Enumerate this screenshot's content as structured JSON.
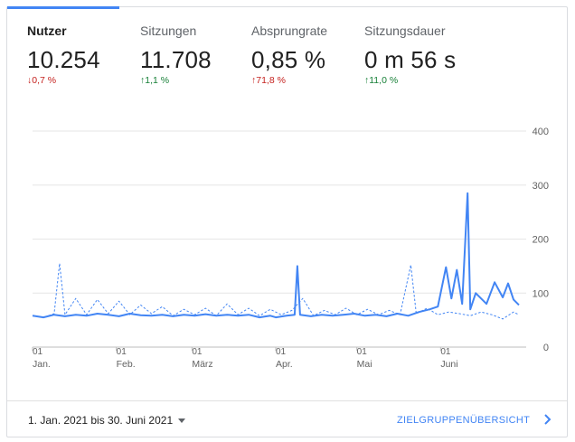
{
  "metrics": [
    {
      "label": "Nutzer",
      "value": "10.254",
      "change": "0,7 %",
      "direction": "down",
      "active": true
    },
    {
      "label": "Sitzungen",
      "value": "11.708",
      "change": "1,1 %",
      "direction": "up",
      "active": false
    },
    {
      "label": "Absprungrate",
      "value": "0,85 %",
      "change": "71,8 %",
      "direction": "up-bad",
      "active": false
    },
    {
      "label": "Sitzungsdauer",
      "value": "0 m 56 s",
      "change": "11,0 %",
      "direction": "up",
      "active": false
    }
  ],
  "footer": {
    "date_range": "1. Jan. 2021 bis 30. Juni 2021",
    "overview_link": "ZIELGRUPPENÜBERSICHT"
  },
  "colors": {
    "accent": "#4285f4",
    "negative": "#c5221f",
    "positive": "#188038"
  },
  "icons": {
    "dropdown": "caret-down-icon",
    "link": "chevron-right-icon"
  },
  "chart_data": {
    "type": "line",
    "x_range": [
      "2021-01-01",
      "2021-06-30"
    ],
    "x_tick_labels": [
      {
        "day": "01",
        "month": "Jan.",
        "date": "2021-01-01"
      },
      {
        "day": "01",
        "month": "Feb.",
        "date": "2021-02-01"
      },
      {
        "day": "01",
        "month": "März",
        "date": "2021-03-01"
      },
      {
        "day": "01",
        "month": "Apr.",
        "date": "2021-04-01"
      },
      {
        "day": "01",
        "month": "Mai",
        "date": "2021-05-01"
      },
      {
        "day": "01",
        "month": "Juni",
        "date": "2021-06-01"
      }
    ],
    "y_ticks": [
      0,
      100,
      200,
      300,
      400
    ],
    "ylim": [
      0,
      400
    ],
    "grid": true,
    "series": [
      {
        "style": "solid",
        "color": "#4285f4",
        "points": [
          [
            "2021-01-01",
            58
          ],
          [
            "2021-01-05",
            55
          ],
          [
            "2021-01-09",
            60
          ],
          [
            "2021-01-13",
            57
          ],
          [
            "2021-01-17",
            60
          ],
          [
            "2021-01-21",
            58
          ],
          [
            "2021-01-25",
            62
          ],
          [
            "2021-01-29",
            60
          ],
          [
            "2021-02-02",
            57
          ],
          [
            "2021-02-06",
            62
          ],
          [
            "2021-02-10",
            59
          ],
          [
            "2021-02-14",
            58
          ],
          [
            "2021-02-18",
            60
          ],
          [
            "2021-02-22",
            57
          ],
          [
            "2021-02-26",
            60
          ],
          [
            "2021-03-02",
            58
          ],
          [
            "2021-03-06",
            61
          ],
          [
            "2021-03-10",
            58
          ],
          [
            "2021-03-14",
            60
          ],
          [
            "2021-03-18",
            58
          ],
          [
            "2021-03-22",
            60
          ],
          [
            "2021-03-26",
            55
          ],
          [
            "2021-03-30",
            58
          ],
          [
            "2021-04-01",
            55
          ],
          [
            "2021-04-05",
            58
          ],
          [
            "2021-04-08",
            60
          ],
          [
            "2021-04-09",
            150
          ],
          [
            "2021-04-10",
            60
          ],
          [
            "2021-04-14",
            57
          ],
          [
            "2021-04-18",
            60
          ],
          [
            "2021-04-22",
            58
          ],
          [
            "2021-04-26",
            60
          ],
          [
            "2021-04-30",
            62
          ],
          [
            "2021-05-04",
            58
          ],
          [
            "2021-05-08",
            60
          ],
          [
            "2021-05-12",
            57
          ],
          [
            "2021-05-16",
            62
          ],
          [
            "2021-05-20",
            58
          ],
          [
            "2021-05-24",
            65
          ],
          [
            "2021-05-28",
            70
          ],
          [
            "2021-05-31",
            75
          ],
          [
            "2021-06-03",
            148
          ],
          [
            "2021-06-05",
            90
          ],
          [
            "2021-06-07",
            143
          ],
          [
            "2021-06-09",
            80
          ],
          [
            "2021-06-11",
            285
          ],
          [
            "2021-06-12",
            70
          ],
          [
            "2021-06-14",
            100
          ],
          [
            "2021-06-18",
            80
          ],
          [
            "2021-06-21",
            120
          ],
          [
            "2021-06-24",
            92
          ],
          [
            "2021-06-26",
            118
          ],
          [
            "2021-06-28",
            88
          ],
          [
            "2021-06-30",
            78
          ]
        ]
      },
      {
        "style": "dashed",
        "color": "#4285f4",
        "points": [
          [
            "2021-01-01",
            58
          ],
          [
            "2021-01-05",
            55
          ],
          [
            "2021-01-09",
            62
          ],
          [
            "2021-01-11",
            155
          ],
          [
            "2021-01-13",
            60
          ],
          [
            "2021-01-17",
            90
          ],
          [
            "2021-01-21",
            60
          ],
          [
            "2021-01-25",
            88
          ],
          [
            "2021-01-29",
            62
          ],
          [
            "2021-02-02",
            85
          ],
          [
            "2021-02-06",
            60
          ],
          [
            "2021-02-10",
            78
          ],
          [
            "2021-02-14",
            62
          ],
          [
            "2021-02-18",
            75
          ],
          [
            "2021-02-22",
            58
          ],
          [
            "2021-02-26",
            70
          ],
          [
            "2021-03-02",
            60
          ],
          [
            "2021-03-06",
            72
          ],
          [
            "2021-03-10",
            58
          ],
          [
            "2021-03-14",
            80
          ],
          [
            "2021-03-18",
            60
          ],
          [
            "2021-03-22",
            72
          ],
          [
            "2021-03-26",
            58
          ],
          [
            "2021-03-30",
            70
          ],
          [
            "2021-04-03",
            60
          ],
          [
            "2021-04-07",
            68
          ],
          [
            "2021-04-11",
            90
          ],
          [
            "2021-04-15",
            58
          ],
          [
            "2021-04-19",
            68
          ],
          [
            "2021-04-23",
            60
          ],
          [
            "2021-04-27",
            72
          ],
          [
            "2021-05-01",
            60
          ],
          [
            "2021-05-05",
            70
          ],
          [
            "2021-05-09",
            60
          ],
          [
            "2021-05-13",
            68
          ],
          [
            "2021-05-17",
            60
          ],
          [
            "2021-05-21",
            152
          ],
          [
            "2021-05-23",
            62
          ],
          [
            "2021-05-27",
            72
          ],
          [
            "2021-05-31",
            60
          ],
          [
            "2021-06-04",
            65
          ],
          [
            "2021-06-08",
            62
          ],
          [
            "2021-06-12",
            58
          ],
          [
            "2021-06-16",
            65
          ],
          [
            "2021-06-20",
            60
          ],
          [
            "2021-06-24",
            52
          ],
          [
            "2021-06-28",
            65
          ],
          [
            "2021-06-30",
            60
          ]
        ]
      }
    ]
  }
}
